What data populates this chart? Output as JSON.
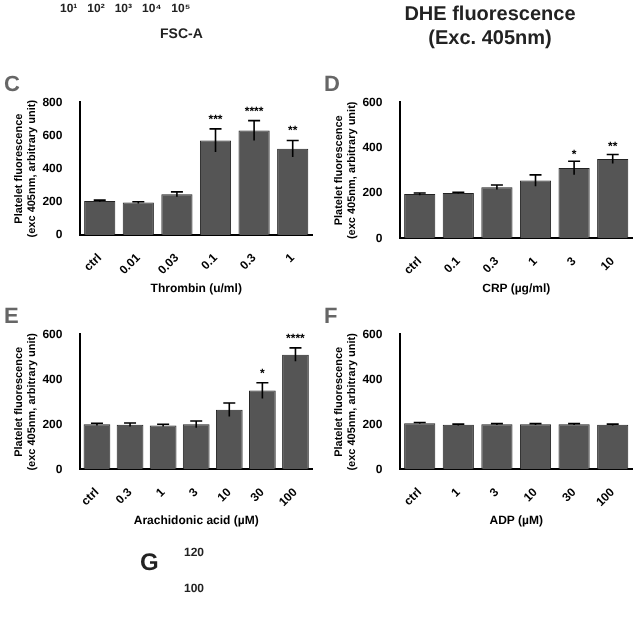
{
  "chart_data": [
    {
      "type": "other",
      "annotations": [
        "10¹   10²   10³   10⁴   10⁵",
        "FSC-A",
        "DHE fluorescence",
        "(Exc. 405nm)"
      ]
    },
    {
      "type": "bar",
      "title": "C",
      "ylabel": "Platelet fluorescence\n(exc 405nm, arbitrary unit)",
      "xlabel": "Thrombin (u/ml)",
      "categories": [
        "ctrl",
        "0.01",
        "0.03",
        "0.1",
        "0.3",
        "1"
      ],
      "values": [
        205,
        195,
        245,
        570,
        630,
        520
      ],
      "errors": [
        5,
        5,
        15,
        70,
        60,
        50
      ],
      "color": "#555555",
      "ylim": [
        0,
        800
      ],
      "yticks": [
        0,
        200,
        400,
        600,
        800
      ],
      "annotations": [
        {
          "text": "***",
          "x": "0.1",
          "y": 660
        },
        {
          "text": "****",
          "x": "0.3",
          "y": 710
        },
        {
          "text": "**",
          "x": "1",
          "y": 590
        }
      ]
    },
    {
      "type": "bar",
      "title": "D",
      "ylabel": "Platelet fluorescence\n(exc 405nm, arbitrary unit)",
      "xlabel": "CRP (µg/ml)",
      "categories": [
        "ctrl",
        "0.1",
        "0.3",
        "1",
        "3",
        "10"
      ],
      "values": [
        195,
        200,
        225,
        255,
        310,
        350
      ],
      "errors": [
        5,
        3,
        10,
        25,
        30,
        20
      ],
      "color": "#555555",
      "ylim": [
        0,
        600
      ],
      "yticks": [
        0,
        200,
        400,
        600
      ],
      "annotations": [
        {
          "text": "*",
          "x": "3",
          "y": 342
        },
        {
          "text": "**",
          "x": "10",
          "y": 380
        }
      ]
    },
    {
      "type": "bar",
      "title": "E",
      "ylabel": "Platelet fluorescence\n(exc 405nm, arbitrary unit)",
      "xlabel": "Arachidonic acid (µM)",
      "categories": [
        "ctrl",
        "0.3",
        "1",
        "3",
        "10",
        "30",
        "100"
      ],
      "values": [
        200,
        198,
        195,
        200,
        265,
        350,
        510
      ],
      "errors": [
        5,
        8,
        5,
        15,
        30,
        35,
        30
      ],
      "color": "#555555",
      "ylim": [
        0,
        600
      ],
      "yticks": [
        0,
        200,
        400,
        600
      ],
      "annotations": [
        {
          "text": "*",
          "x": "30",
          "y": 400
        },
        {
          "text": "****",
          "x": "100",
          "y": 555
        }
      ]
    },
    {
      "type": "bar",
      "title": "F",
      "ylabel": "Platelet fluorescence\n(exc 405nm, arbitrary unit)",
      "xlabel": "ADP (µM)",
      "categories": [
        "ctrl",
        "1",
        "3",
        "10",
        "30",
        "100"
      ],
      "values": [
        205,
        198,
        200,
        200,
        200,
        198
      ],
      "errors": [
        3,
        3,
        3,
        3,
        3,
        3
      ],
      "color": "#555555",
      "ylim": [
        0,
        600
      ],
      "yticks": [
        0,
        200,
        400,
        600
      ]
    },
    {
      "type": "other",
      "title": "G",
      "annotations": [
        "120",
        "100"
      ]
    }
  ]
}
